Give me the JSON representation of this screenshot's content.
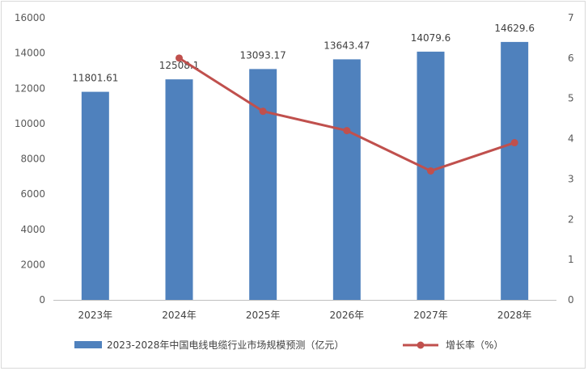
{
  "chart_data": {
    "type": "bar",
    "categories": [
      "2023年",
      "2024年",
      "2025年",
      "2026年",
      "2027年",
      "2028年"
    ],
    "series": [
      {
        "name": "2023-2028年中国电线电缆行业市场规模预测（亿元）",
        "type": "bar",
        "axis": "left",
        "values": [
          11801.61,
          12508.1,
          13093.17,
          13643.47,
          14079.6,
          14629.6
        ],
        "labels": [
          "11801.61",
          "12508.1",
          "13093.17",
          "13643.47",
          "14079.6",
          "14629.6"
        ],
        "color": "#4f81bd"
      },
      {
        "name": "增长率（%）",
        "type": "line",
        "axis": "right",
        "values": [
          null,
          6.0,
          4.68,
          4.2,
          3.2,
          3.9
        ],
        "color": "#c0504d"
      }
    ],
    "y_left": {
      "min": 0,
      "max": 16000,
      "step": 2000
    },
    "y_right": {
      "min": 0,
      "max": 7,
      "step": 1
    },
    "grid": false,
    "legend_position": "bottom"
  }
}
